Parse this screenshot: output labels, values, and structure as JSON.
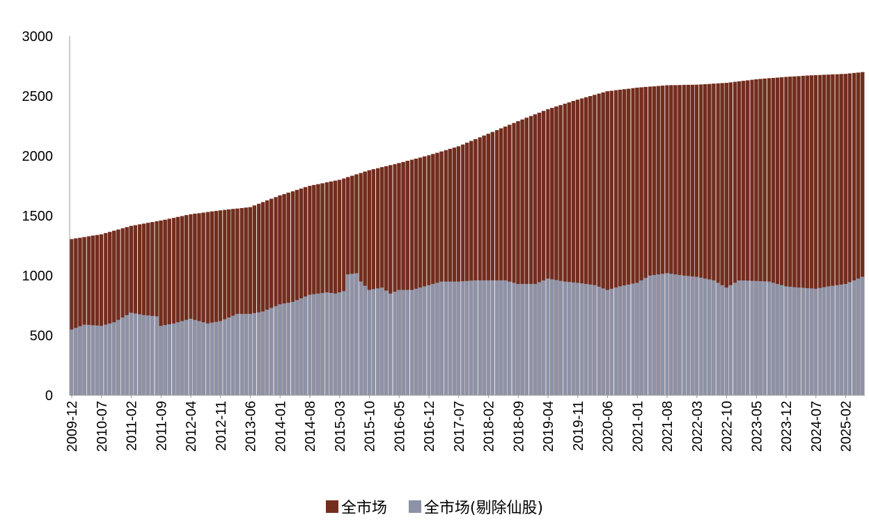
{
  "colors": {
    "all_market": "#722d1e",
    "ex_shell": "#8e92a6",
    "axis": "#9a9a9a",
    "divider": "#ffffff"
  },
  "legend": {
    "all_market": "全市场",
    "ex_shell": "全市场(剔除仙股)"
  },
  "chart_data": {
    "type": "bar",
    "stacking": "overlay",
    "x_start": "2009-12",
    "x_end": "2025-06",
    "x_tick_labels": [
      "2009-12",
      "2010-07",
      "2011-02",
      "2011-09",
      "2012-04",
      "2012-11",
      "2013-06",
      "2014-01",
      "2014-08",
      "2015-03",
      "2015-10",
      "2016-05",
      "2016-12",
      "2017-07",
      "2018-02",
      "2018-09",
      "2019-04",
      "2019-11",
      "2020-06",
      "2021-01",
      "2021-08",
      "2022-03",
      "2022-10",
      "2023-05",
      "2023-12",
      "2024-07",
      "2025-02"
    ],
    "y_ticks": [
      0,
      500,
      1000,
      1500,
      2000,
      2500,
      3000
    ],
    "ylim": [
      0,
      3000
    ],
    "grid": false,
    "legend_position": "bottom",
    "series": [
      {
        "name": "全市场",
        "anchors": [
          [
            "2009-12",
            1305
          ],
          [
            "2010-07",
            1345
          ],
          [
            "2011-02",
            1415
          ],
          [
            "2011-09",
            1460
          ],
          [
            "2012-04",
            1512
          ],
          [
            "2012-11",
            1545
          ],
          [
            "2013-06",
            1572
          ],
          [
            "2014-01",
            1670
          ],
          [
            "2014-08",
            1750
          ],
          [
            "2015-03",
            1800
          ],
          [
            "2015-10",
            1880
          ],
          [
            "2016-05",
            1940
          ],
          [
            "2016-12",
            2005
          ],
          [
            "2017-07",
            2080
          ],
          [
            "2018-02",
            2185
          ],
          [
            "2018-09",
            2290
          ],
          [
            "2019-04",
            2390
          ],
          [
            "2019-11",
            2470
          ],
          [
            "2020-06",
            2540
          ],
          [
            "2021-01",
            2570
          ],
          [
            "2021-08",
            2590
          ],
          [
            "2022-03",
            2595
          ],
          [
            "2022-10",
            2610
          ],
          [
            "2023-05",
            2640
          ],
          [
            "2023-12",
            2660
          ],
          [
            "2024-07",
            2675
          ],
          [
            "2025-02",
            2685
          ],
          [
            "2025-06",
            2700
          ]
        ]
      },
      {
        "name": "全市场(剔除仙股)",
        "anchors": [
          [
            "2009-12",
            550
          ],
          [
            "2010-03",
            590
          ],
          [
            "2010-07",
            580
          ],
          [
            "2010-10",
            610
          ],
          [
            "2011-02",
            690
          ],
          [
            "2011-05",
            670
          ],
          [
            "2011-08",
            660
          ],
          [
            "2011-09",
            580
          ],
          [
            "2011-12",
            600
          ],
          [
            "2012-04",
            640
          ],
          [
            "2012-08",
            600
          ],
          [
            "2012-11",
            620
          ],
          [
            "2013-03",
            680
          ],
          [
            "2013-06",
            680
          ],
          [
            "2013-09",
            700
          ],
          [
            "2014-01",
            760
          ],
          [
            "2014-04",
            780
          ],
          [
            "2014-08",
            840
          ],
          [
            "2014-12",
            860
          ],
          [
            "2015-02",
            850
          ],
          [
            "2015-04",
            870
          ],
          [
            "2015-05",
            1010
          ],
          [
            "2015-07",
            1020
          ],
          [
            "2015-08",
            950
          ],
          [
            "2015-10",
            880
          ],
          [
            "2016-01",
            900
          ],
          [
            "2016-03",
            850
          ],
          [
            "2016-05",
            880
          ],
          [
            "2016-08",
            880
          ],
          [
            "2016-12",
            920
          ],
          [
            "2017-03",
            950
          ],
          [
            "2017-07",
            950
          ],
          [
            "2017-11",
            960
          ],
          [
            "2018-02",
            960
          ],
          [
            "2018-06",
            960
          ],
          [
            "2018-09",
            930
          ],
          [
            "2019-01",
            930
          ],
          [
            "2019-04",
            975
          ],
          [
            "2019-08",
            950
          ],
          [
            "2019-11",
            940
          ],
          [
            "2020-03",
            920
          ],
          [
            "2020-06",
            880
          ],
          [
            "2020-09",
            910
          ],
          [
            "2021-01",
            940
          ],
          [
            "2021-04",
            1000
          ],
          [
            "2021-08",
            1020
          ],
          [
            "2021-12",
            1000
          ],
          [
            "2022-03",
            990
          ],
          [
            "2022-07",
            960
          ],
          [
            "2022-10",
            900
          ],
          [
            "2023-01",
            960
          ],
          [
            "2023-05",
            955
          ],
          [
            "2023-08",
            950
          ],
          [
            "2023-12",
            910
          ],
          [
            "2024-03",
            900
          ],
          [
            "2024-07",
            890
          ],
          [
            "2024-10",
            910
          ],
          [
            "2025-02",
            930
          ],
          [
            "2025-06",
            990
          ]
        ]
      }
    ]
  }
}
